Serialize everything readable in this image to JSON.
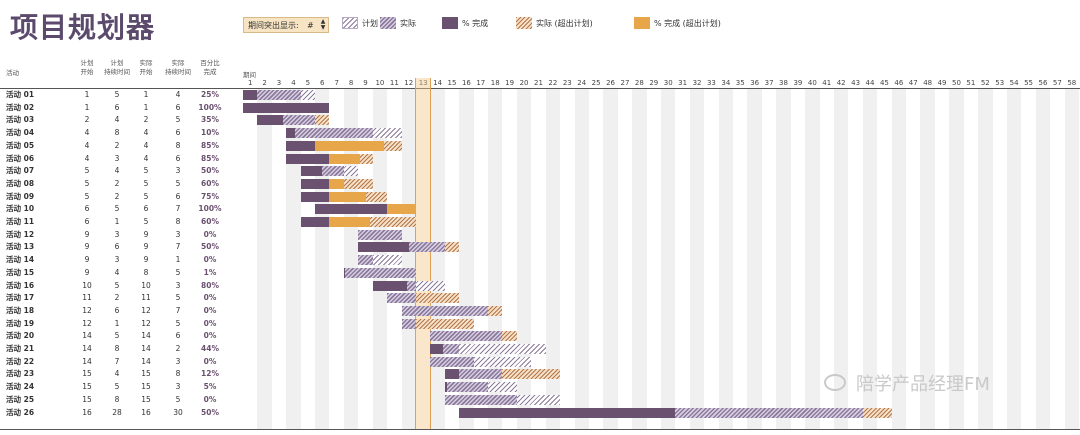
{
  "title": "项目规划器",
  "highlight_control": {
    "label": "期间突出显示:",
    "value": "#"
  },
  "legend": [
    {
      "key": "plan",
      "label": "计划"
    },
    {
      "key": "actual",
      "label": "实际"
    },
    {
      "key": "complete",
      "label": "% 完成"
    },
    {
      "key": "beyond",
      "label": "实际 (超出计划)"
    },
    {
      "key": "cbeyond",
      "label": "% 完成 (超出计划)"
    }
  ],
  "headers": {
    "activity": "活动",
    "plan_start": [
      "计划",
      "开始"
    ],
    "plan_duration": [
      "计划",
      "持续时间"
    ],
    "actual_start": [
      "实际",
      "开始"
    ],
    "actual_duration": [
      "实际",
      "持续时间"
    ],
    "percent_complete": [
      "百分比",
      "完成"
    ],
    "period": "期间"
  },
  "highlighted_period": 13,
  "periods": [
    1,
    2,
    3,
    4,
    5,
    6,
    7,
    8,
    9,
    10,
    11,
    12,
    13,
    14,
    15,
    16,
    17,
    18,
    19,
    20,
    21,
    22,
    23,
    24,
    25,
    26,
    27,
    28,
    29,
    30,
    31,
    32,
    33,
    34,
    35,
    36,
    37,
    38,
    39,
    40,
    41,
    42,
    43,
    44,
    45,
    46,
    47,
    48,
    49,
    50,
    51,
    52,
    53,
    54,
    55,
    56,
    57,
    58
  ],
  "activities": [
    {
      "name": "活动 01",
      "ps": 1,
      "pd": 5,
      "as": 1,
      "ad": 4,
      "pct": "25%"
    },
    {
      "name": "活动 02",
      "ps": 1,
      "pd": 6,
      "as": 1,
      "ad": 6,
      "pct": "100%"
    },
    {
      "name": "活动 03",
      "ps": 2,
      "pd": 4,
      "as": 2,
      "ad": 5,
      "pct": "35%"
    },
    {
      "name": "活动 04",
      "ps": 4,
      "pd": 8,
      "as": 4,
      "ad": 6,
      "pct": "10%"
    },
    {
      "name": "活动 05",
      "ps": 4,
      "pd": 2,
      "as": 4,
      "ad": 8,
      "pct": "85%"
    },
    {
      "name": "活动 06",
      "ps": 4,
      "pd": 3,
      "as": 4,
      "ad": 6,
      "pct": "85%"
    },
    {
      "name": "活动 07",
      "ps": 5,
      "pd": 4,
      "as": 5,
      "ad": 3,
      "pct": "50%"
    },
    {
      "name": "活动 08",
      "ps": 5,
      "pd": 2,
      "as": 5,
      "ad": 5,
      "pct": "60%"
    },
    {
      "name": "活动 09",
      "ps": 5,
      "pd": 2,
      "as": 5,
      "ad": 6,
      "pct": "75%"
    },
    {
      "name": "活动 10",
      "ps": 6,
      "pd": 5,
      "as": 6,
      "ad": 7,
      "pct": "100%"
    },
    {
      "name": "活动 11",
      "ps": 6,
      "pd": 1,
      "as": 5,
      "ad": 8,
      "pct": "60%"
    },
    {
      "name": "活动 12",
      "ps": 9,
      "pd": 3,
      "as": 9,
      "ad": 3,
      "pct": "0%"
    },
    {
      "name": "活动 13",
      "ps": 9,
      "pd": 6,
      "as": 9,
      "ad": 7,
      "pct": "50%"
    },
    {
      "name": "活动 14",
      "ps": 9,
      "pd": 3,
      "as": 9,
      "ad": 1,
      "pct": "0%"
    },
    {
      "name": "活动 15",
      "ps": 9,
      "pd": 4,
      "as": 8,
      "ad": 5,
      "pct": "1%"
    },
    {
      "name": "活动 16",
      "ps": 10,
      "pd": 5,
      "as": 10,
      "ad": 3,
      "pct": "80%"
    },
    {
      "name": "活动 17",
      "ps": 11,
      "pd": 2,
      "as": 11,
      "ad": 5,
      "pct": "0%"
    },
    {
      "name": "活动 18",
      "ps": 12,
      "pd": 6,
      "as": 12,
      "ad": 7,
      "pct": "0%"
    },
    {
      "name": "活动 19",
      "ps": 12,
      "pd": 1,
      "as": 12,
      "ad": 5,
      "pct": "0%"
    },
    {
      "name": "活动 20",
      "ps": 14,
      "pd": 5,
      "as": 14,
      "ad": 6,
      "pct": "0%"
    },
    {
      "name": "活动 21",
      "ps": 14,
      "pd": 8,
      "as": 14,
      "ad": 2,
      "pct": "44%"
    },
    {
      "name": "活动 22",
      "ps": 14,
      "pd": 7,
      "as": 14,
      "ad": 3,
      "pct": "0%"
    },
    {
      "name": "活动 23",
      "ps": 15,
      "pd": 4,
      "as": 15,
      "ad": 8,
      "pct": "12%"
    },
    {
      "name": "活动 24",
      "ps": 15,
      "pd": 5,
      "as": 15,
      "ad": 3,
      "pct": "5%"
    },
    {
      "name": "活动 25",
      "ps": 15,
      "pd": 8,
      "as": 15,
      "ad": 5,
      "pct": "0%"
    },
    {
      "name": "活动 26",
      "ps": 16,
      "pd": 28,
      "as": 16,
      "ad": 30,
      "pct": "50%"
    }
  ],
  "watermark": "陪学产品经理FM"
}
